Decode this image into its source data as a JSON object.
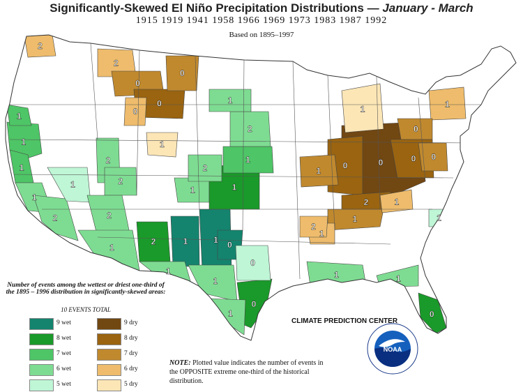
{
  "title": {
    "main": "Significantly-Skewed El Niño Precipitation Distributions  —",
    "season": "January - March"
  },
  "years": "1915 1919 1941 1958 1966 1969 1973 1983 1987 1992",
  "based_on": "Based on 1895–1997",
  "legend": {
    "heading": "Number of events among the wettest or driest one-third of the 1895 – 1996 distribution in significantly-skewed areas:",
    "total": "10 EVENTS TOTAL",
    "wet": [
      {
        "label": "9 wet",
        "color": "#14846e"
      },
      {
        "label": "8 wet",
        "color": "#1a9a2a"
      },
      {
        "label": "7 wet",
        "color": "#4ec566"
      },
      {
        "label": "6 wet",
        "color": "#7edc92"
      },
      {
        "label": "5 wet",
        "color": "#bff6d6"
      }
    ],
    "dry": [
      {
        "label": "9 dry",
        "color": "#714712"
      },
      {
        "label": "8 dry",
        "color": "#9a6410"
      },
      {
        "label": "7 dry",
        "color": "#c0892e"
      },
      {
        "label": "6 dry",
        "color": "#eebc6c"
      },
      {
        "label": "5 dry",
        "color": "#fce6b6"
      }
    ]
  },
  "credit": "CLIMATE PREDICTION CENTER",
  "note_label": "NOTE:",
  "note_text": "Plotted value indicates the number of events in the OPPOSITE extreme one-third of the historical distribution.",
  "logo_text": "NOAA",
  "map_regions": [
    {
      "id": "pnw-coast",
      "cat": "7w",
      "label": "1"
    },
    {
      "id": "wa-mid",
      "cat": "7w",
      "label": "1"
    },
    {
      "id": "ca-north",
      "cat": "7w",
      "label": "1"
    },
    {
      "id": "ca-central",
      "cat": "6w",
      "label": "1"
    },
    {
      "id": "ca-south",
      "cat": "6w",
      "label": "2"
    },
    {
      "id": "nv-west",
      "cat": "5w",
      "label": "1"
    },
    {
      "id": "utah-west",
      "cat": "6w",
      "label": "2"
    },
    {
      "id": "utah-east",
      "cat": "6w",
      "label": "2"
    },
    {
      "id": "az-west",
      "cat": "6w",
      "label": "2"
    },
    {
      "id": "az-south",
      "cat": "6w",
      "label": "1"
    },
    {
      "id": "nm-west",
      "cat": "8w",
      "label": "2"
    },
    {
      "id": "nm-central",
      "cat": "9w",
      "label": "1"
    },
    {
      "id": "nm-east",
      "cat": "9w",
      "label": "1"
    },
    {
      "id": "tx-panhandle",
      "cat": "9w",
      "label": "0"
    },
    {
      "id": "tx-west",
      "cat": "6w",
      "label": "1"
    },
    {
      "id": "tx-central",
      "cat": "6w",
      "label": "1"
    },
    {
      "id": "tx-southeast",
      "cat": "8w",
      "label": "0"
    },
    {
      "id": "tx-south",
      "cat": "6w",
      "label": "1"
    },
    {
      "id": "tx-east",
      "cat": "5w",
      "label": "0"
    },
    {
      "id": "ok-west",
      "cat": "6w",
      "label": "1"
    },
    {
      "id": "ks-southwest",
      "cat": "8w",
      "label": "1"
    },
    {
      "id": "ks-northeast",
      "cat": "7w",
      "label": "1"
    },
    {
      "id": "ne-central",
      "cat": "6w",
      "label": "2"
    },
    {
      "id": "sd-east",
      "cat": "6w",
      "label": "1"
    },
    {
      "id": "co-east",
      "cat": "6w",
      "label": "2"
    },
    {
      "id": "gulf-la",
      "cat": "6w",
      "label": "1"
    },
    {
      "id": "fl-north",
      "cat": "6w",
      "label": "1"
    },
    {
      "id": "fl-peninsula",
      "cat": "8w",
      "label": "0"
    },
    {
      "id": "nc-coast",
      "cat": "5w",
      "label": "1"
    },
    {
      "id": "mt-north",
      "cat": "6d",
      "label": "2"
    },
    {
      "id": "mt-central",
      "cat": "7d",
      "label": "0"
    },
    {
      "id": "mt-south",
      "cat": "8d",
      "label": "0"
    },
    {
      "id": "wy-north",
      "cat": "7d",
      "label": "0"
    },
    {
      "id": "id-east",
      "cat": "6d",
      "label": "0"
    },
    {
      "id": "wa-ne",
      "cat": "6d",
      "label": "2"
    },
    {
      "id": "ut-north",
      "cat": "5d",
      "label": "1"
    },
    {
      "id": "ohio-valley",
      "cat": "9d",
      "label": "0"
    },
    {
      "id": "in-il",
      "cat": "8d",
      "label": "0"
    },
    {
      "id": "mo-east",
      "cat": "7d",
      "label": "1"
    },
    {
      "id": "tn-north",
      "cat": "8d",
      "label": "2"
    },
    {
      "id": "tn-south",
      "cat": "7d",
      "label": "1"
    },
    {
      "id": "ms-north",
      "cat": "6d",
      "label": "1"
    },
    {
      "id": "ar-east",
      "cat": "6d",
      "label": "2"
    },
    {
      "id": "mi-lower",
      "cat": "5d",
      "label": "1"
    },
    {
      "id": "ny-west",
      "cat": "6d",
      "label": "1"
    },
    {
      "id": "pa-west",
      "cat": "7d",
      "label": "0"
    },
    {
      "id": "wv",
      "cat": "8d",
      "label": "0"
    },
    {
      "id": "va-west",
      "cat": "7d",
      "label": "0"
    },
    {
      "id": "nc-west",
      "cat": "6d",
      "label": "1"
    }
  ]
}
